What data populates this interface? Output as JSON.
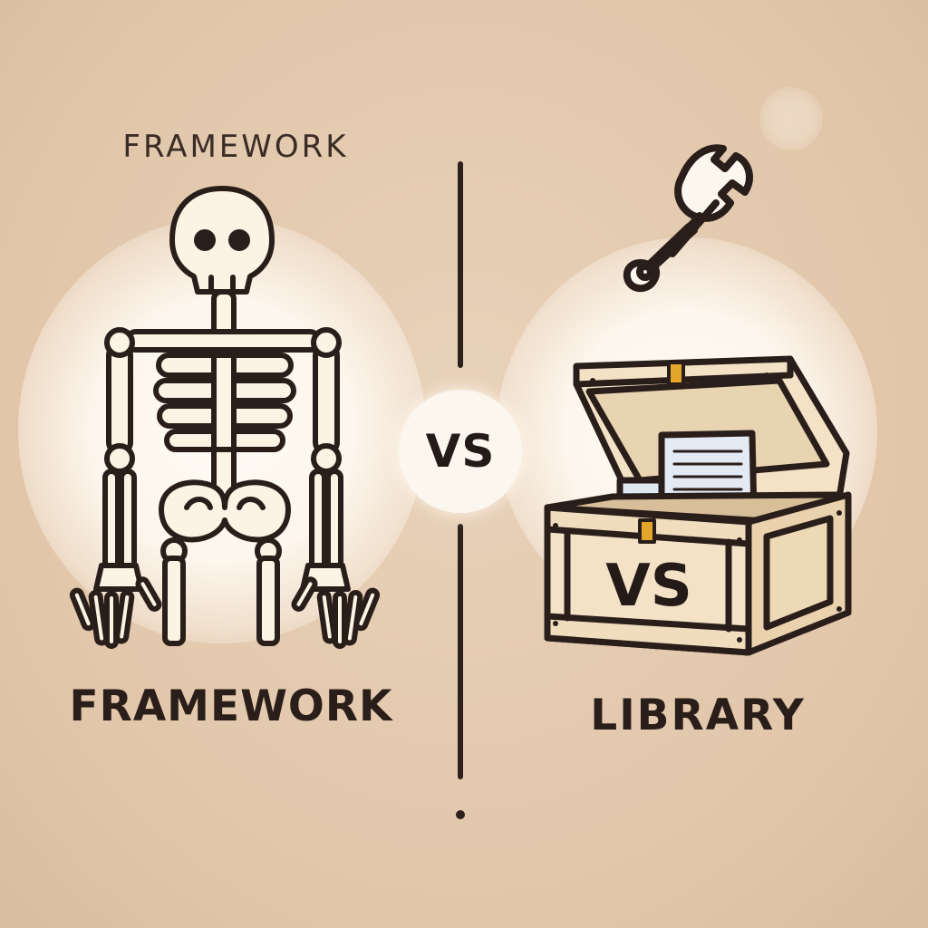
{
  "title_top": "FRAMEWORK",
  "label_left": "FRAMEWORK",
  "label_right": "LIBRARY",
  "center_badge": "VS",
  "chest_label": "VS",
  "icons": {
    "left": "skeleton-icon",
    "right_top": "wrench-icon",
    "right_main": "treasure-chest-icon"
  },
  "colors": {
    "background": "#e3c9ad",
    "outline": "#2a1e1a",
    "bone": "#fbf3e3",
    "chest_wood": "#f3e2c6",
    "latch": "#e3a52a",
    "paper": "#dfe7f0"
  }
}
